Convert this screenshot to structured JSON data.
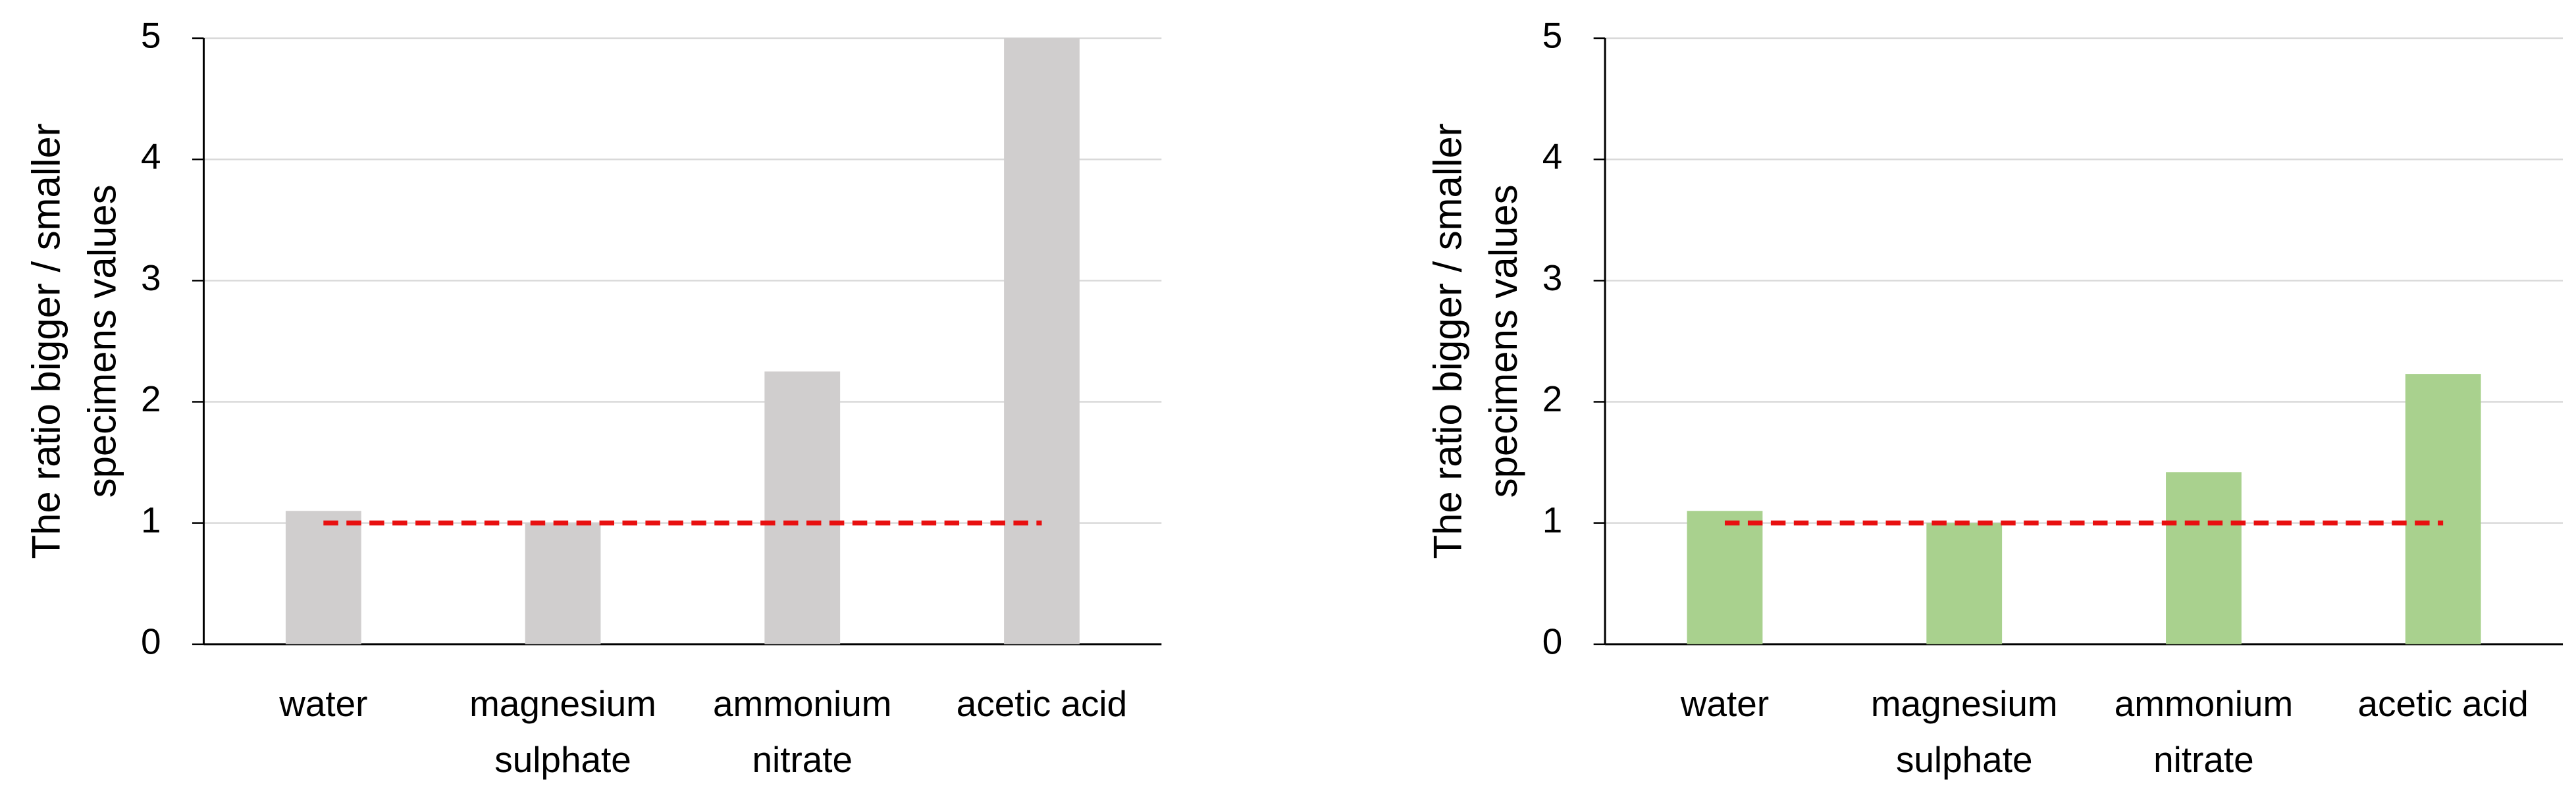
{
  "chart_data": [
    {
      "type": "bar",
      "y_label": [
        "The ratio bigger / smaller",
        "specimens values"
      ],
      "categories": [
        [
          "water"
        ],
        [
          "magnesium",
          "sulphate"
        ],
        [
          "ammonium",
          "nitrate"
        ],
        [
          "acetic acid"
        ]
      ],
      "values": [
        1.1,
        1.0,
        2.25,
        5.0
      ],
      "color": "#d0cece",
      "reference": {
        "value": 1,
        "color": "#e81010"
      },
      "ylim": [
        0,
        5
      ],
      "yticks": [
        0,
        1,
        2,
        3,
        4,
        5
      ],
      "grid": true
    },
    {
      "type": "bar",
      "y_label": [
        "The ratio bigger / smaller",
        "specimens values"
      ],
      "categories": [
        [
          "water"
        ],
        [
          "magnesium",
          "sulphate"
        ],
        [
          "ammonium",
          "nitrate"
        ],
        [
          "acetic acid"
        ]
      ],
      "values": [
        1.1,
        1.0,
        1.42,
        2.23
      ],
      "color": "#a9d18e",
      "reference": {
        "value": 1,
        "color": "#e81010"
      },
      "ylim": [
        0,
        5
      ],
      "yticks": [
        0,
        1,
        2,
        3,
        4,
        5
      ],
      "grid": true
    }
  ]
}
